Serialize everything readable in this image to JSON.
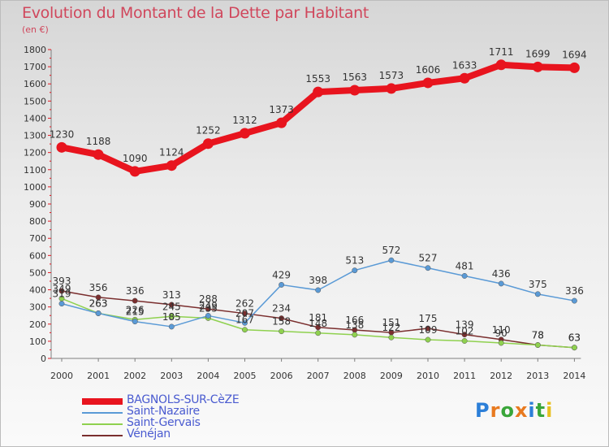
{
  "title": "Evolution du Montant de la Dette par Habitant",
  "unit": "(en €)",
  "logo": {
    "text": "Proxiti",
    "letters": [
      {
        "ch": "P",
        "color": "#2c7fd8"
      },
      {
        "ch": "r",
        "color": "#e87a20"
      },
      {
        "ch": "o",
        "color": "#3aa63a"
      },
      {
        "ch": "x",
        "color": "#e87a20"
      },
      {
        "ch": "i",
        "color": "#2c7fd8"
      },
      {
        "ch": "t",
        "color": "#3aa63a"
      },
      {
        "ch": "i",
        "color": "#e8c020"
      }
    ]
  },
  "chart_data": {
    "type": "line",
    "title": "Evolution du Montant de la Dette par Habitant",
    "subtitle": "(en €)",
    "x": [
      2000,
      2001,
      2002,
      2003,
      2004,
      2005,
      2006,
      2007,
      2008,
      2009,
      2010,
      2011,
      2012,
      2013,
      2014
    ],
    "ylim": [
      0,
      1800
    ],
    "yticks": [
      0,
      100,
      200,
      300,
      400,
      500,
      600,
      700,
      800,
      900,
      1000,
      1100,
      1200,
      1300,
      1400,
      1500,
      1600,
      1700,
      1800
    ],
    "grid": false,
    "legend": "bottom-left",
    "series": [
      {
        "name": "BAGNOLS-SUR-CèZE",
        "color": "#e8141e",
        "values": [
          1230,
          1188,
          1090,
          1124,
          1252,
          1312,
          1373,
          1553,
          1563,
          1573,
          1606,
          1633,
          1711,
          1699,
          1694
        ],
        "labels_shown": true
      },
      {
        "name": "Saint-Nazaire",
        "color": "#5a9ad6",
        "values": [
          319,
          263,
          215,
          185,
          249,
          207,
          429,
          398,
          513,
          572,
          527,
          481,
          436,
          375,
          336
        ],
        "labels_shown": true
      },
      {
        "name": "Saint-Gervais",
        "color": "#8fd14f",
        "values": [
          349,
          263,
          226,
          245,
          235,
          167,
          158,
          148,
          138,
          122,
          109,
          102,
          90,
          78,
          63
        ],
        "labels_shown": true
      },
      {
        "name": "Vénéjan",
        "color": "#7a2e2e",
        "values": [
          393,
          356,
          336,
          313,
          288,
          262,
          234,
          181,
          166,
          151,
          175,
          139,
          110,
          78,
          63
        ],
        "labels_shown": true
      }
    ]
  }
}
